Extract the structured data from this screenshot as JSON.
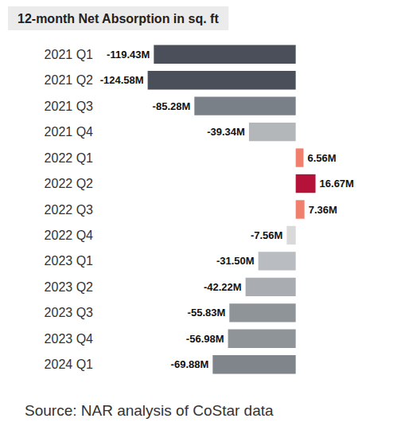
{
  "chart_data": {
    "type": "bar",
    "title": "12-month Net Absorption in sq. ft",
    "source": "Source: NAR analysis of CoStar data",
    "orientation": "horizontal",
    "categories": [
      "2021 Q1",
      "2021 Q2",
      "2021 Q3",
      "2021 Q4",
      "2022 Q1",
      "2022 Q2",
      "2022 Q3",
      "2022 Q4",
      "2023 Q1",
      "2023 Q2",
      "2023 Q3",
      "2023 Q4",
      "2024 Q1"
    ],
    "values": [
      -119.43,
      -124.58,
      -85.28,
      -39.34,
      6.56,
      16.67,
      7.36,
      -7.56,
      -31.5,
      -42.22,
      -55.83,
      -56.98,
      -69.88
    ],
    "value_labels": [
      "-119.43M",
      "-124.58M",
      "-85.28M",
      "-39.34M",
      "6.56M",
      "16.67M",
      "7.36M",
      "-7.56M",
      "-31.50M",
      "-42.22M",
      "-55.83M",
      "-56.98M",
      "-69.88M"
    ],
    "colors": [
      "#4a4f5a",
      "#4a4f5a",
      "#7a8088",
      "#b4b7ba",
      "#f07f6e",
      "#b5123a",
      "#f07f6e",
      "#d9d9d9",
      "#b9bcc0",
      "#a9adb1",
      "#8f9499",
      "#8f9499",
      "#7f858b"
    ],
    "xlim": [
      -125,
      25
    ],
    "xticks": [
      -125,
      -100,
      -75,
      -50,
      -25,
      0,
      25
    ],
    "data_labels": true,
    "tick_labels": false,
    "grid": false
  }
}
